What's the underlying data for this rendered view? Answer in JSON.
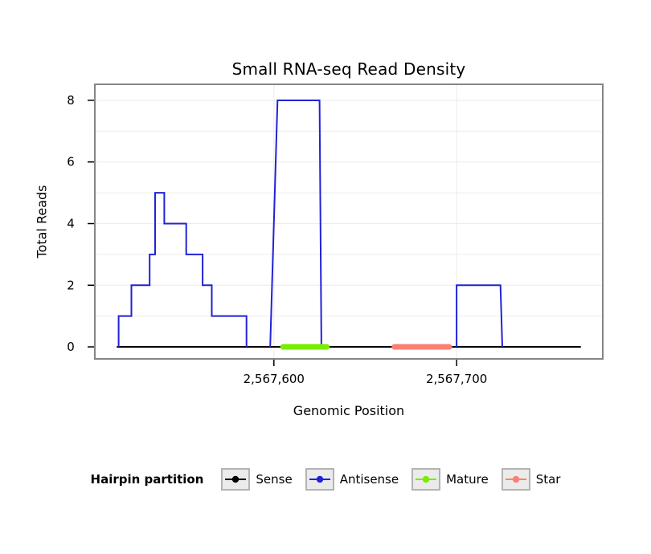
{
  "title": "Small RNA-seq Read Density",
  "chart_data": {
    "type": "line",
    "title": "Small RNA-seq Read Density",
    "xlabel": "Genomic Position",
    "ylabel": "Total Reads",
    "xlim": [
      2567502,
      2567780
    ],
    "ylim": [
      -0.39,
      8.52
    ],
    "grid": true,
    "colors": {
      "panel_border": "#858585",
      "gridline": "#ebebeb",
      "axis_text": "#000000",
      "legend_key_fill": "#ebebeb",
      "legend_key_border": "#b3b3b3"
    },
    "x_ticks": [
      {
        "value": 2567600,
        "label": "2,567,600"
      },
      {
        "value": 2567700,
        "label": "2,567,700"
      }
    ],
    "y_ticks": [
      {
        "value": 0,
        "label": "0"
      },
      {
        "value": 2,
        "label": "2"
      },
      {
        "value": 4,
        "label": "4"
      },
      {
        "value": 6,
        "label": "6"
      },
      {
        "value": 8,
        "label": "8"
      }
    ],
    "y_grid": [
      1,
      2,
      3,
      4,
      5,
      6,
      7,
      8
    ],
    "series": [
      {
        "name": "Sense",
        "color": "#000000",
        "width": 2,
        "linecap": "butt",
        "paths": [
          [
            [
              2567514,
              0
            ],
            [
              2567768,
              0
            ]
          ]
        ]
      },
      {
        "name": "Antisense",
        "color": "#2222d6",
        "width": 2,
        "linecap": "butt",
        "paths": [
          [
            [
              2567515,
              0
            ],
            [
              2567515,
              1
            ],
            [
              2567522,
              1
            ],
            [
              2567522,
              2
            ],
            [
              2567532,
              2
            ],
            [
              2567532,
              3
            ],
            [
              2567535,
              3
            ],
            [
              2567535,
              5
            ],
            [
              2567540,
              5
            ],
            [
              2567540,
              4
            ],
            [
              2567552,
              4
            ],
            [
              2567552,
              3
            ],
            [
              2567561,
              3
            ],
            [
              2567561,
              2
            ],
            [
              2567566,
              2
            ],
            [
              2567566,
              1
            ],
            [
              2567585,
              1
            ],
            [
              2567585,
              0
            ]
          ],
          [
            [
              2567598,
              0
            ],
            [
              2567602,
              8
            ],
            [
              2567625,
              8
            ],
            [
              2567626,
              0
            ]
          ],
          [
            [
              2567700,
              0
            ],
            [
              2567700,
              2
            ],
            [
              2567724,
              2
            ],
            [
              2567725,
              0
            ]
          ]
        ]
      },
      {
        "name": "Mature",
        "color": "#76ee00",
        "width": 7,
        "linecap": "round",
        "paths": [
          [
            [
              2567605,
              0
            ],
            [
              2567629,
              0
            ]
          ]
        ]
      },
      {
        "name": "Star",
        "color": "#fa8072",
        "width": 7,
        "linecap": "round",
        "paths": [
          [
            [
              2567666,
              0
            ],
            [
              2567696,
              0
            ]
          ]
        ]
      }
    ],
    "legend": {
      "title": "Hairpin partition",
      "position": "bottom",
      "items": [
        {
          "label": "Sense",
          "color": "#000000"
        },
        {
          "label": "Antisense",
          "color": "#2222d6"
        },
        {
          "label": "Mature",
          "color": "#76ee00"
        },
        {
          "label": "Star",
          "color": "#fa8072"
        }
      ]
    }
  }
}
